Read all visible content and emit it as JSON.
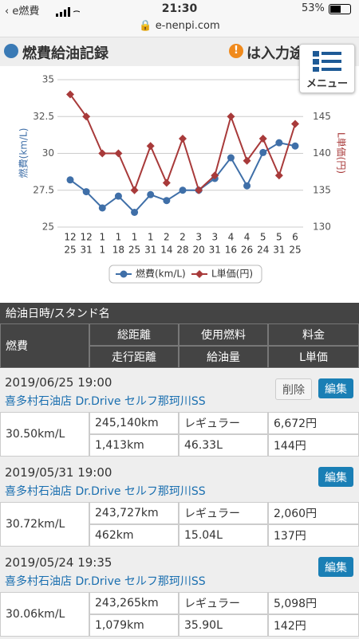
{
  "status_bar": {
    "carrier": "e燃費",
    "time": "21:30",
    "battery": "53%"
  },
  "url": "e-nenpi.com",
  "header": {
    "title": "燃費給油記録",
    "notice": "は入力途"
  },
  "menu": "メニュー",
  "chart_data": {
    "type": "line",
    "y_label": "燃費(km/L)",
    "y2_label": "L単価(円)",
    "categories": [
      [
        "12",
        "25"
      ],
      [
        "12",
        "31"
      ],
      [
        "1",
        "1"
      ],
      [
        "1",
        "18"
      ],
      [
        "1",
        "25"
      ],
      [
        "1",
        "31"
      ],
      [
        "2",
        "14"
      ],
      [
        "2",
        "28"
      ],
      [
        "3",
        "20"
      ],
      [
        "3",
        "31"
      ],
      [
        "4",
        "16"
      ],
      [
        "4",
        "26"
      ],
      [
        "5",
        "24"
      ],
      [
        "5",
        "31"
      ],
      [
        "6",
        "25"
      ]
    ],
    "series": [
      {
        "name": "燃費(km/L)",
        "color": "#3f6fa8",
        "marker": "circle",
        "values": [
          28.2,
          27.4,
          26.3,
          27.1,
          26.0,
          27.2,
          26.8,
          27.5,
          27.5,
          28.3,
          29.7,
          27.8,
          30.06,
          30.72,
          30.5
        ]
      },
      {
        "name": "L単価(円)",
        "color": "#a83a3a",
        "marker": "diamond",
        "axis": "y2",
        "values": [
          148,
          145,
          140,
          140,
          135,
          141,
          136,
          142,
          135,
          137,
          145,
          139,
          142,
          137,
          144
        ]
      }
    ],
    "ylim": [
      25,
      35
    ],
    "yticks": [
      25,
      27.5,
      30,
      32.5,
      35
    ],
    "y2lim": [
      130,
      150
    ],
    "y2ticks": [
      130,
      135,
      140,
      145
    ],
    "grid": true,
    "legend": "bottom"
  },
  "table": {
    "caption": "給油日時/スタンド名",
    "headers": [
      [
        "燃費",
        "総距離",
        "使用燃料",
        "料金"
      ],
      [
        "走行距離",
        "給油量",
        "L単価"
      ]
    ]
  },
  "records": [
    {
      "datetime": "2019/06/25 19:00",
      "station": "喜多村石油店 Dr.Drive セルフ那珂川SS",
      "delete": "削除",
      "edit": "編集",
      "fuel_economy": "30.50km/L",
      "total_distance": "245,140km",
      "fuel_type": "レギュラー",
      "cost": "6,672円",
      "trip": "1,413km",
      "amount": "46.33L",
      "unit_price": "144円"
    },
    {
      "datetime": "2019/05/31 19:00",
      "station": "喜多村石油店 Dr.Drive セルフ那珂川SS",
      "edit": "編集",
      "fuel_economy": "30.72km/L",
      "total_distance": "243,727km",
      "fuel_type": "レギュラー",
      "cost": "2,060円",
      "trip": "462km",
      "amount": "15.04L",
      "unit_price": "137円"
    },
    {
      "datetime": "2019/05/24 19:35",
      "station": "喜多村石油店 Dr.Drive セルフ那珂川SS",
      "edit": "編集",
      "fuel_economy": "30.06km/L",
      "total_distance": "243,265km",
      "fuel_type": "レギュラー",
      "cost": "5,098円",
      "trip": "1,079km",
      "amount": "35.90L",
      "unit_price": "142円"
    }
  ]
}
